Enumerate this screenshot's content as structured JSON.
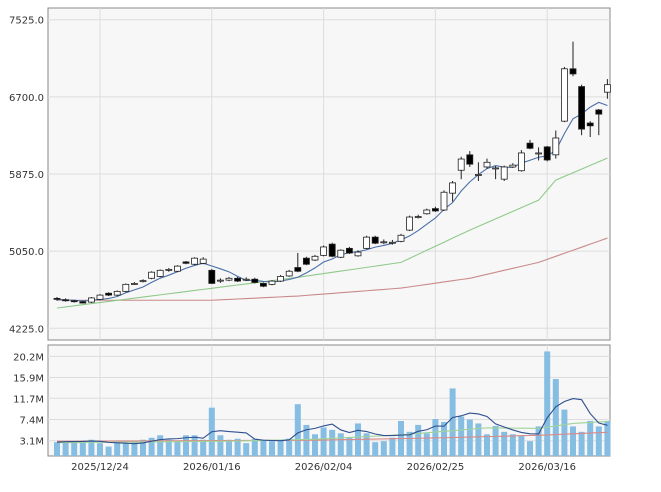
{
  "chart_data": [
    {
      "type": "candlestick",
      "title": "",
      "y_ticks": [
        4225.0,
        5050.0,
        5875.0,
        6700.0,
        7525.0
      ],
      "y_tick_labels": [
        "4225.0",
        "5050.0",
        "5875.0",
        "6700.0",
        "7525.0"
      ],
      "ylim": [
        4100,
        7650
      ],
      "grid": true,
      "x_tick_labels": [
        {
          "index": 5,
          "label": "2025/12/24"
        },
        {
          "index": 18,
          "label": "2026/01/16"
        },
        {
          "index": 31,
          "label": "2026/02/04"
        },
        {
          "index": 44,
          "label": "2026/02/25"
        },
        {
          "index": 57,
          "label": "2026/03/16"
        }
      ],
      "open": [
        4545,
        4530,
        4520,
        4510,
        4505,
        4535,
        4600,
        4580,
        4620,
        4700,
        4730,
        4760,
        4780,
        4850,
        4835,
        4935,
        4910,
        4920,
        4845,
        4735,
        4740,
        4760,
        4745,
        4750,
        4705,
        4695,
        4730,
        4785,
        4875,
        4975,
        4955,
        5005,
        5125,
        4985,
        5080,
        5000,
        5080,
        5200,
        5150,
        5140,
        5155,
        5275,
        5415,
        5450,
        5505,
        5490,
        5670,
        5915,
        6080,
        5865,
        5950,
        5935,
        5820,
        5950,
        5910,
        6205,
        6095,
        6165,
        6080,
        6440,
        7000,
        6810,
        6420,
        6560,
        6750
      ],
      "high": [
        4560,
        4545,
        4530,
        4520,
        4560,
        4590,
        4610,
        4630,
        4705,
        4720,
        4750,
        4835,
        4855,
        4870,
        4900,
        4945,
        4985,
        4985,
        4860,
        4760,
        4775,
        4775,
        4770,
        4765,
        4715,
        4740,
        4795,
        4850,
        5030,
        4990,
        5010,
        5110,
        5140,
        5070,
        5095,
        5060,
        5215,
        5215,
        5175,
        5170,
        5235,
        5430,
        5440,
        5505,
        5525,
        5700,
        5800,
        6060,
        6120,
        6000,
        6040,
        5960,
        5965,
        5990,
        6130,
        6240,
        6160,
        6175,
        6340,
        7020,
        7290,
        6830,
        6440,
        6570,
        6890
      ],
      "low": [
        4520,
        4510,
        4500,
        4490,
        4495,
        4525,
        4570,
        4570,
        4610,
        4690,
        4715,
        4750,
        4770,
        4830,
        4825,
        4910,
        4900,
        4910,
        4700,
        4710,
        4730,
        4720,
        4730,
        4705,
        4665,
        4685,
        4720,
        4775,
        4825,
        4900,
        4945,
        4995,
        4985,
        4975,
        5020,
        4990,
        5070,
        5125,
        5125,
        5120,
        5145,
        5265,
        5400,
        5440,
        5470,
        5480,
        5580,
        5820,
        5950,
        5800,
        5930,
        5820,
        5800,
        5940,
        5900,
        6140,
        6020,
        6010,
        6040,
        6430,
        6920,
        6290,
        6270,
        6290,
        6680
      ],
      "close": [
        4535,
        4525,
        4515,
        4495,
        4550,
        4580,
        4580,
        4620,
        4695,
        4705,
        4735,
        4825,
        4845,
        4855,
        4890,
        4920,
        4975,
        4965,
        4705,
        4740,
        4760,
        4730,
        4750,
        4715,
        4675,
        4730,
        4780,
        4835,
        4835,
        4910,
        4995,
        5095,
        4995,
        5060,
        5030,
        5040,
        5200,
        5135,
        5150,
        5145,
        5220,
        5415,
        5420,
        5490,
        5480,
        5680,
        5780,
        6035,
        5980,
        5870,
        6000,
        5940,
        5950,
        5970,
        6100,
        6150,
        6100,
        6025,
        6260,
        7000,
        6945,
        6355,
        6390,
        6515,
        6830
      ],
      "ma_short_period": 5,
      "ma_mid_points": [
        [
          0,
          4442
        ],
        [
          18,
          4653
        ],
        [
          28,
          4770
        ],
        [
          40,
          4930
        ],
        [
          48,
          5275
        ],
        [
          56,
          5595
        ],
        [
          58,
          5810
        ],
        [
          64,
          6045
        ]
      ],
      "ma_long_points": [
        [
          0,
          4525
        ],
        [
          18,
          4525
        ],
        [
          28,
          4570
        ],
        [
          40,
          4655
        ],
        [
          48,
          4760
        ],
        [
          56,
          4930
        ],
        [
          64,
          5190
        ]
      ],
      "colors": {
        "up_fill": "#ffffff",
        "down_fill": "#000000",
        "ma_short": "#4a6fa8",
        "ma_mid": "#8fca8a",
        "ma_long": "#c98a8a"
      }
    },
    {
      "type": "bar",
      "unit": "M",
      "y_ticks": [
        3.1,
        7.4,
        11.7,
        15.9,
        20.2
      ],
      "y_tick_labels": [
        "3.1M",
        "7.4M",
        "11.7M",
        "15.9M",
        "20.2M"
      ],
      "ylim": [
        0,
        22.5
      ],
      "values": [
        2.8,
        3.0,
        3.0,
        3.0,
        3.3,
        2.6,
        1.9,
        2.6,
        2.6,
        2.8,
        3.3,
        3.7,
        4.2,
        3.3,
        3.1,
        4.2,
        4.2,
        3.3,
        9.8,
        4.2,
        3.3,
        3.5,
        2.6,
        3.5,
        3.1,
        3.0,
        3.3,
        3.5,
        10.5,
        6.3,
        4.4,
        5.8,
        5.3,
        4.6,
        3.7,
        6.6,
        4.6,
        2.8,
        3.0,
        3.7,
        7.1,
        4.9,
        6.3,
        4.6,
        7.5,
        6.9,
        13.7,
        8.0,
        7.4,
        6.6,
        4.4,
        6.1,
        4.9,
        4.4,
        4.1,
        3.0,
        6.0,
        21.2,
        15.6,
        9.4,
        6.0,
        4.9,
        7.1,
        6.0,
        7.1
      ],
      "ma_short_period": 5,
      "ma_mid_points": [
        [
          0,
          2.7
        ],
        [
          20,
          3.0
        ],
        [
          30,
          3.4
        ],
        [
          40,
          4.3
        ],
        [
          50,
          5.7
        ],
        [
          56,
          5.6
        ],
        [
          60,
          6.6
        ],
        [
          64,
          7.0
        ]
      ],
      "ma_long_points": [
        [
          0,
          3.0
        ],
        [
          30,
          3.2
        ],
        [
          45,
          3.7
        ],
        [
          56,
          4.2
        ],
        [
          64,
          4.8
        ]
      ],
      "colors": {
        "bar": "#86bde3",
        "ma_short": "#2f4f8f",
        "ma_mid": "#9fd39a",
        "ma_long": "#d98a8a"
      }
    }
  ]
}
